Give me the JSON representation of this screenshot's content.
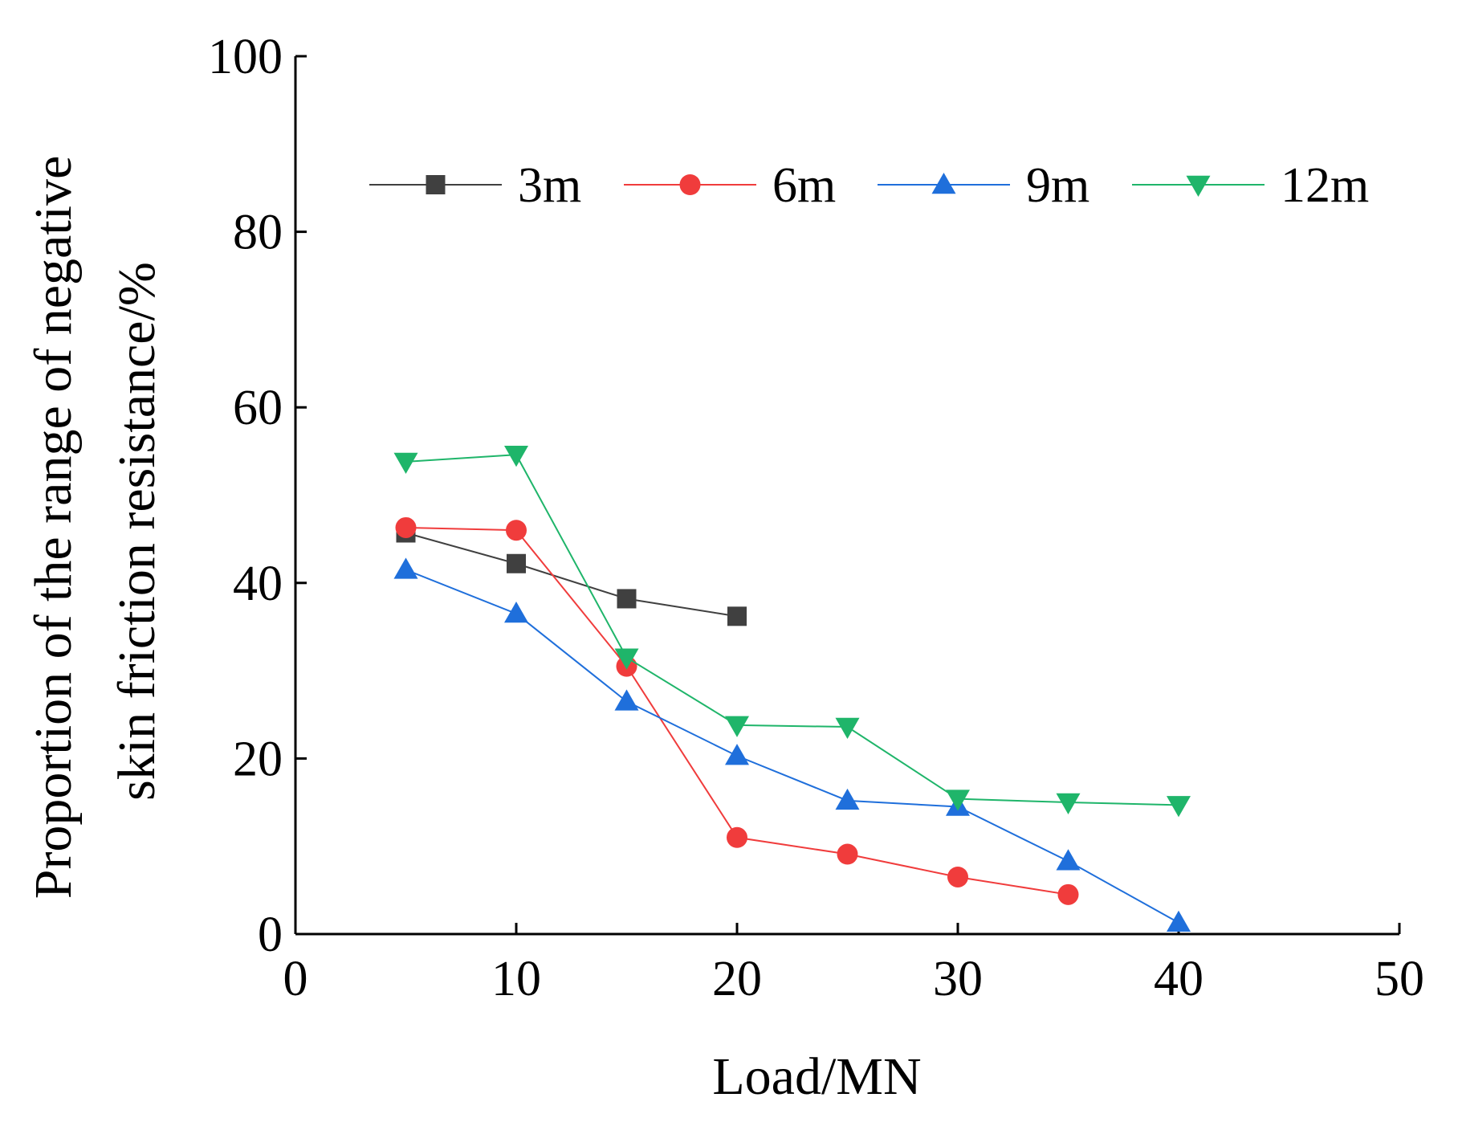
{
  "chart_data": {
    "type": "line",
    "title": "",
    "xlabel": "Load/MN",
    "ylabel_lines": [
      "Proportion of the range of negative",
      "skin friction resistance/%"
    ],
    "xlim": [
      0,
      50
    ],
    "ylim": [
      0,
      100
    ],
    "xticks": [
      0,
      10,
      20,
      30,
      40,
      50
    ],
    "yticks": [
      0,
      20,
      40,
      60,
      80,
      100
    ],
    "grid": false,
    "legend_position": "top",
    "series": [
      {
        "name": "3m",
        "color": "#404040",
        "marker": "square",
        "x": [
          5,
          10,
          15,
          20
        ],
        "y": [
          45.7,
          42.2,
          38.2,
          36.2
        ]
      },
      {
        "name": "6m",
        "color": "#f03c3c",
        "marker": "circle",
        "x": [
          5,
          10,
          15,
          20,
          25,
          30,
          35
        ],
        "y": [
          46.3,
          46.0,
          30.5,
          11.0,
          9.1,
          6.5,
          4.5
        ]
      },
      {
        "name": "9m",
        "color": "#1f6fdb",
        "marker": "triangle-up",
        "x": [
          5,
          10,
          15,
          20,
          25,
          30,
          35,
          40
        ],
        "y": [
          41.5,
          36.5,
          26.5,
          20.3,
          15.2,
          14.5,
          8.3,
          1.3
        ]
      },
      {
        "name": "12m",
        "color": "#1fb56a",
        "marker": "triangle-down",
        "x": [
          5,
          10,
          15,
          20,
          25,
          30,
          35,
          40
        ],
        "y": [
          53.8,
          54.6,
          31.5,
          23.8,
          23.6,
          15.4,
          15.0,
          14.7
        ]
      }
    ]
  }
}
